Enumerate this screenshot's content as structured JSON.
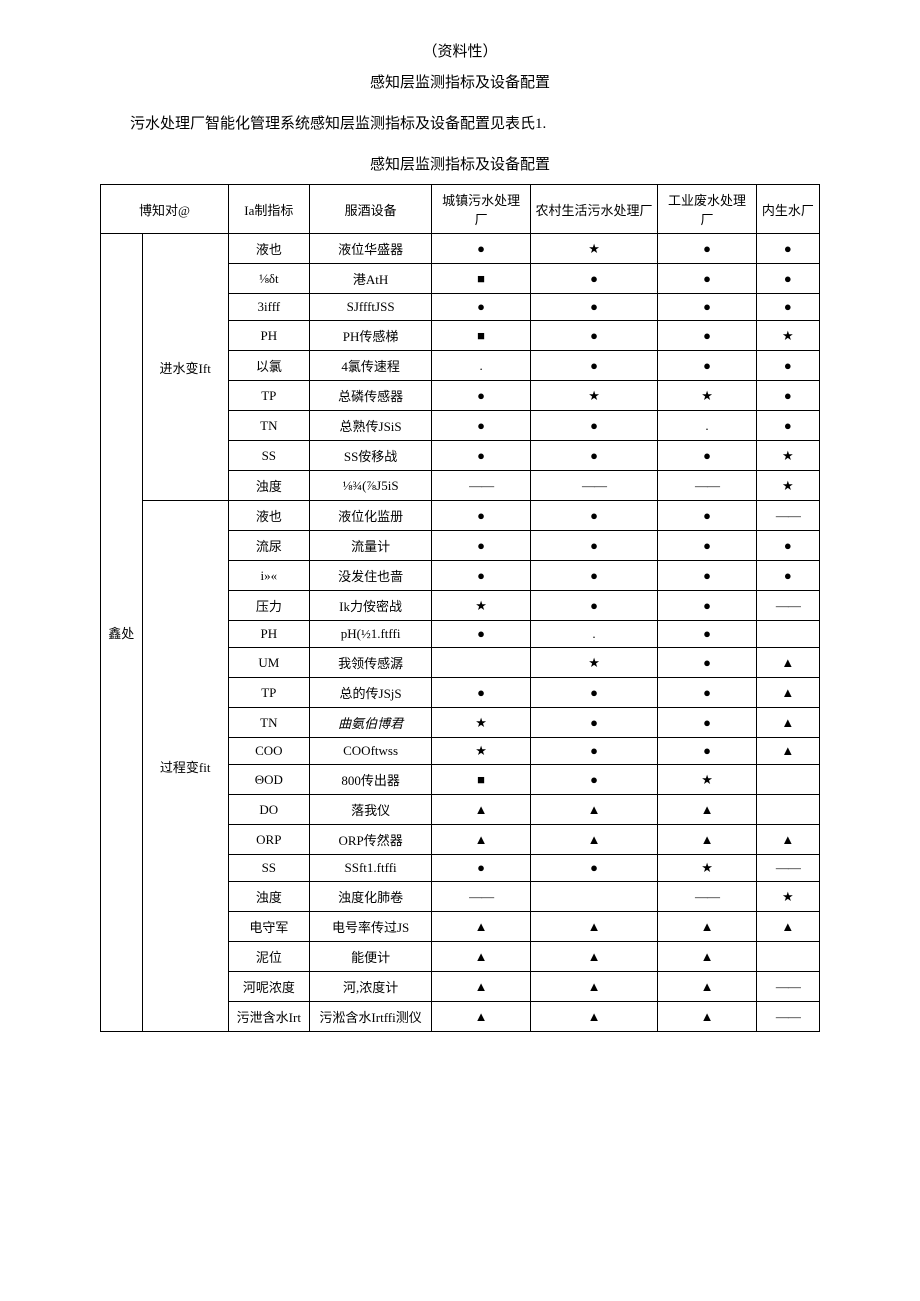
{
  "header": {
    "line1": "（资料性）",
    "line2": "感知层监测指标及设备配置"
  },
  "intro": "污水处理厂智能化管理系统感知层监测指标及设备配置见表氏1.",
  "table_caption": "感知层监测指标及设备配置",
  "symbols": {
    "dot": "●",
    "star": "★",
    "square": "■",
    "triangle": "▲",
    "dash": "——",
    "halfdot": "."
  },
  "columns": {
    "c1": "博知对@",
    "c2": "Ia制指标",
    "c3": "服酒设备",
    "c4": "城镇污水处理厂",
    "c5": "农村生活污水处理厂",
    "c6": "工业废水处理厂",
    "c7": "内生水厂"
  },
  "col1_main": "鑫处",
  "groups": {
    "g1": "进水变Ift",
    "g2": "过程变fit"
  },
  "rows": [
    {
      "g": "g1",
      "ind": "液也",
      "dev": "液位华盛器",
      "c4": "dot",
      "c5": "star",
      "c6": "dot",
      "c7": "dot"
    },
    {
      "g": "g1",
      "ind": "⅛δt",
      "dev": "港AtH",
      "c4": "square",
      "c5": "dot",
      "c6": "dot",
      "c7": "dot"
    },
    {
      "g": "g1",
      "ind": "3ifff",
      "dev": "SJffftJSS",
      "c4": "dot",
      "c5": "dot",
      "c6": "dot",
      "c7": "dot"
    },
    {
      "g": "g1",
      "ind": "PH",
      "dev": "PH传感梯",
      "c4": "square",
      "c5": "dot",
      "c6": "dot",
      "c7": "star"
    },
    {
      "g": "g1",
      "ind": "以氯",
      "dev": "4氯传速程",
      "c4": "halfdot",
      "c5": "dot",
      "c6": "dot",
      "c7": "dot"
    },
    {
      "g": "g1",
      "ind": "TP",
      "dev": "总磷传感器",
      "c4": "dot",
      "c5": "star",
      "c6": "star",
      "c7": "dot"
    },
    {
      "g": "g1",
      "ind": "TN",
      "dev": "总熟传JSiS",
      "c4": "dot",
      "c5": "dot",
      "c6": "halfdot",
      "c7": "dot"
    },
    {
      "g": "g1",
      "ind": "SS",
      "dev": "SS侒移战",
      "c4": "dot",
      "c5": "dot",
      "c6": "dot",
      "c7": "star"
    },
    {
      "g": "g1",
      "ind": "浊度",
      "dev": "⅛¾(⅞J5iS",
      "c4": "dash",
      "c5": "dash",
      "c6": "dash",
      "c7": "star"
    },
    {
      "g": "g2",
      "ind": "液也",
      "dev": "液位化监册",
      "c4": "dot",
      "c5": "dot",
      "c6": "dot",
      "c7": "dash"
    },
    {
      "g": "g2",
      "ind": "流尿",
      "dev": "流量计",
      "c4": "dot",
      "c5": "dot",
      "c6": "dot",
      "c7": "dot"
    },
    {
      "g": "g2",
      "ind": "i»«",
      "dev": "没发住也啬",
      "c4": "dot",
      "c5": "dot",
      "c6": "dot",
      "c7": "dot"
    },
    {
      "g": "g2",
      "ind": "压力",
      "dev": "Ik力侒密战",
      "c4": "star",
      "c5": "dot",
      "c6": "dot",
      "c7": "dash"
    },
    {
      "g": "g2",
      "ind": "PH",
      "dev": "pH(½1.ftffi",
      "c4": "dot",
      "c5": "halfdot",
      "c6": "dot",
      "c7": ""
    },
    {
      "g": "g2",
      "ind": "UM",
      "dev": "我领传感潺",
      "c4": "",
      "c5": "star",
      "c6": "dot",
      "c7": "triangle"
    },
    {
      "g": "g2",
      "ind": "TP",
      "dev": "总的传JSjS",
      "c4": "dot",
      "c5": "dot",
      "c6": "dot",
      "c7": "triangle"
    },
    {
      "g": "g2",
      "ind": "TN",
      "dev": "曲氨伯博君",
      "devItalic": true,
      "c4": "star",
      "c5": "dot",
      "c6": "dot",
      "c7": "triangle"
    },
    {
      "g": "g2",
      "ind": "COO",
      "dev": "COOftwss",
      "c4": "star",
      "c5": "dot",
      "c6": "dot",
      "c7": "triangle"
    },
    {
      "g": "g2",
      "ind": "ΘOD",
      "dev": "800传出器",
      "c4": "square",
      "c5": "dot",
      "c6": "star",
      "c7": ""
    },
    {
      "g": "g2",
      "ind": "DO",
      "dev": "落我仪",
      "c4": "triangle",
      "c5": "triangle",
      "c6": "triangle",
      "c7": ""
    },
    {
      "g": "g2",
      "ind": "ORP",
      "dev": "ORP传然器",
      "c4": "triangle",
      "c5": "triangle",
      "c6": "triangle",
      "c7": "triangle"
    },
    {
      "g": "g2",
      "ind": "SS",
      "dev": "SSft1.ftffi",
      "c4": "dot",
      "c5": "dot",
      "c6": "star",
      "c7": "dash"
    },
    {
      "g": "g2",
      "ind": "浊度",
      "dev": "浊度化肺卷",
      "c4": "dash",
      "c5": "",
      "c6": "dash",
      "c7": "star"
    },
    {
      "g": "g2",
      "ind": "电守军",
      "dev": "电号率传过JS",
      "c4": "triangle",
      "c5": "triangle",
      "c6": "triangle",
      "c7": "triangle"
    },
    {
      "g": "g2",
      "ind": "泥位",
      "dev": "能便计",
      "c4": "triangle",
      "c5": "triangle",
      "c6": "triangle",
      "c7": ""
    },
    {
      "g": "g2",
      "ind": "河呢浓度",
      "dev": "河,浓度计",
      "c4": "triangle",
      "c5": "triangle",
      "c6": "triangle",
      "c7": "dash"
    },
    {
      "g": "g2",
      "ind": "污泄含水Irt",
      "dev": "污淞含水Irtffi测仪",
      "c4": "triangle",
      "c5": "triangle",
      "c6": "triangle",
      "c7": "dash"
    }
  ],
  "colwidths": {
    "c1": "42",
    "c1b": "88",
    "c2": "82",
    "c3": "124",
    "c4": "100",
    "c5": "130",
    "c6": "100",
    "c7": "64"
  }
}
